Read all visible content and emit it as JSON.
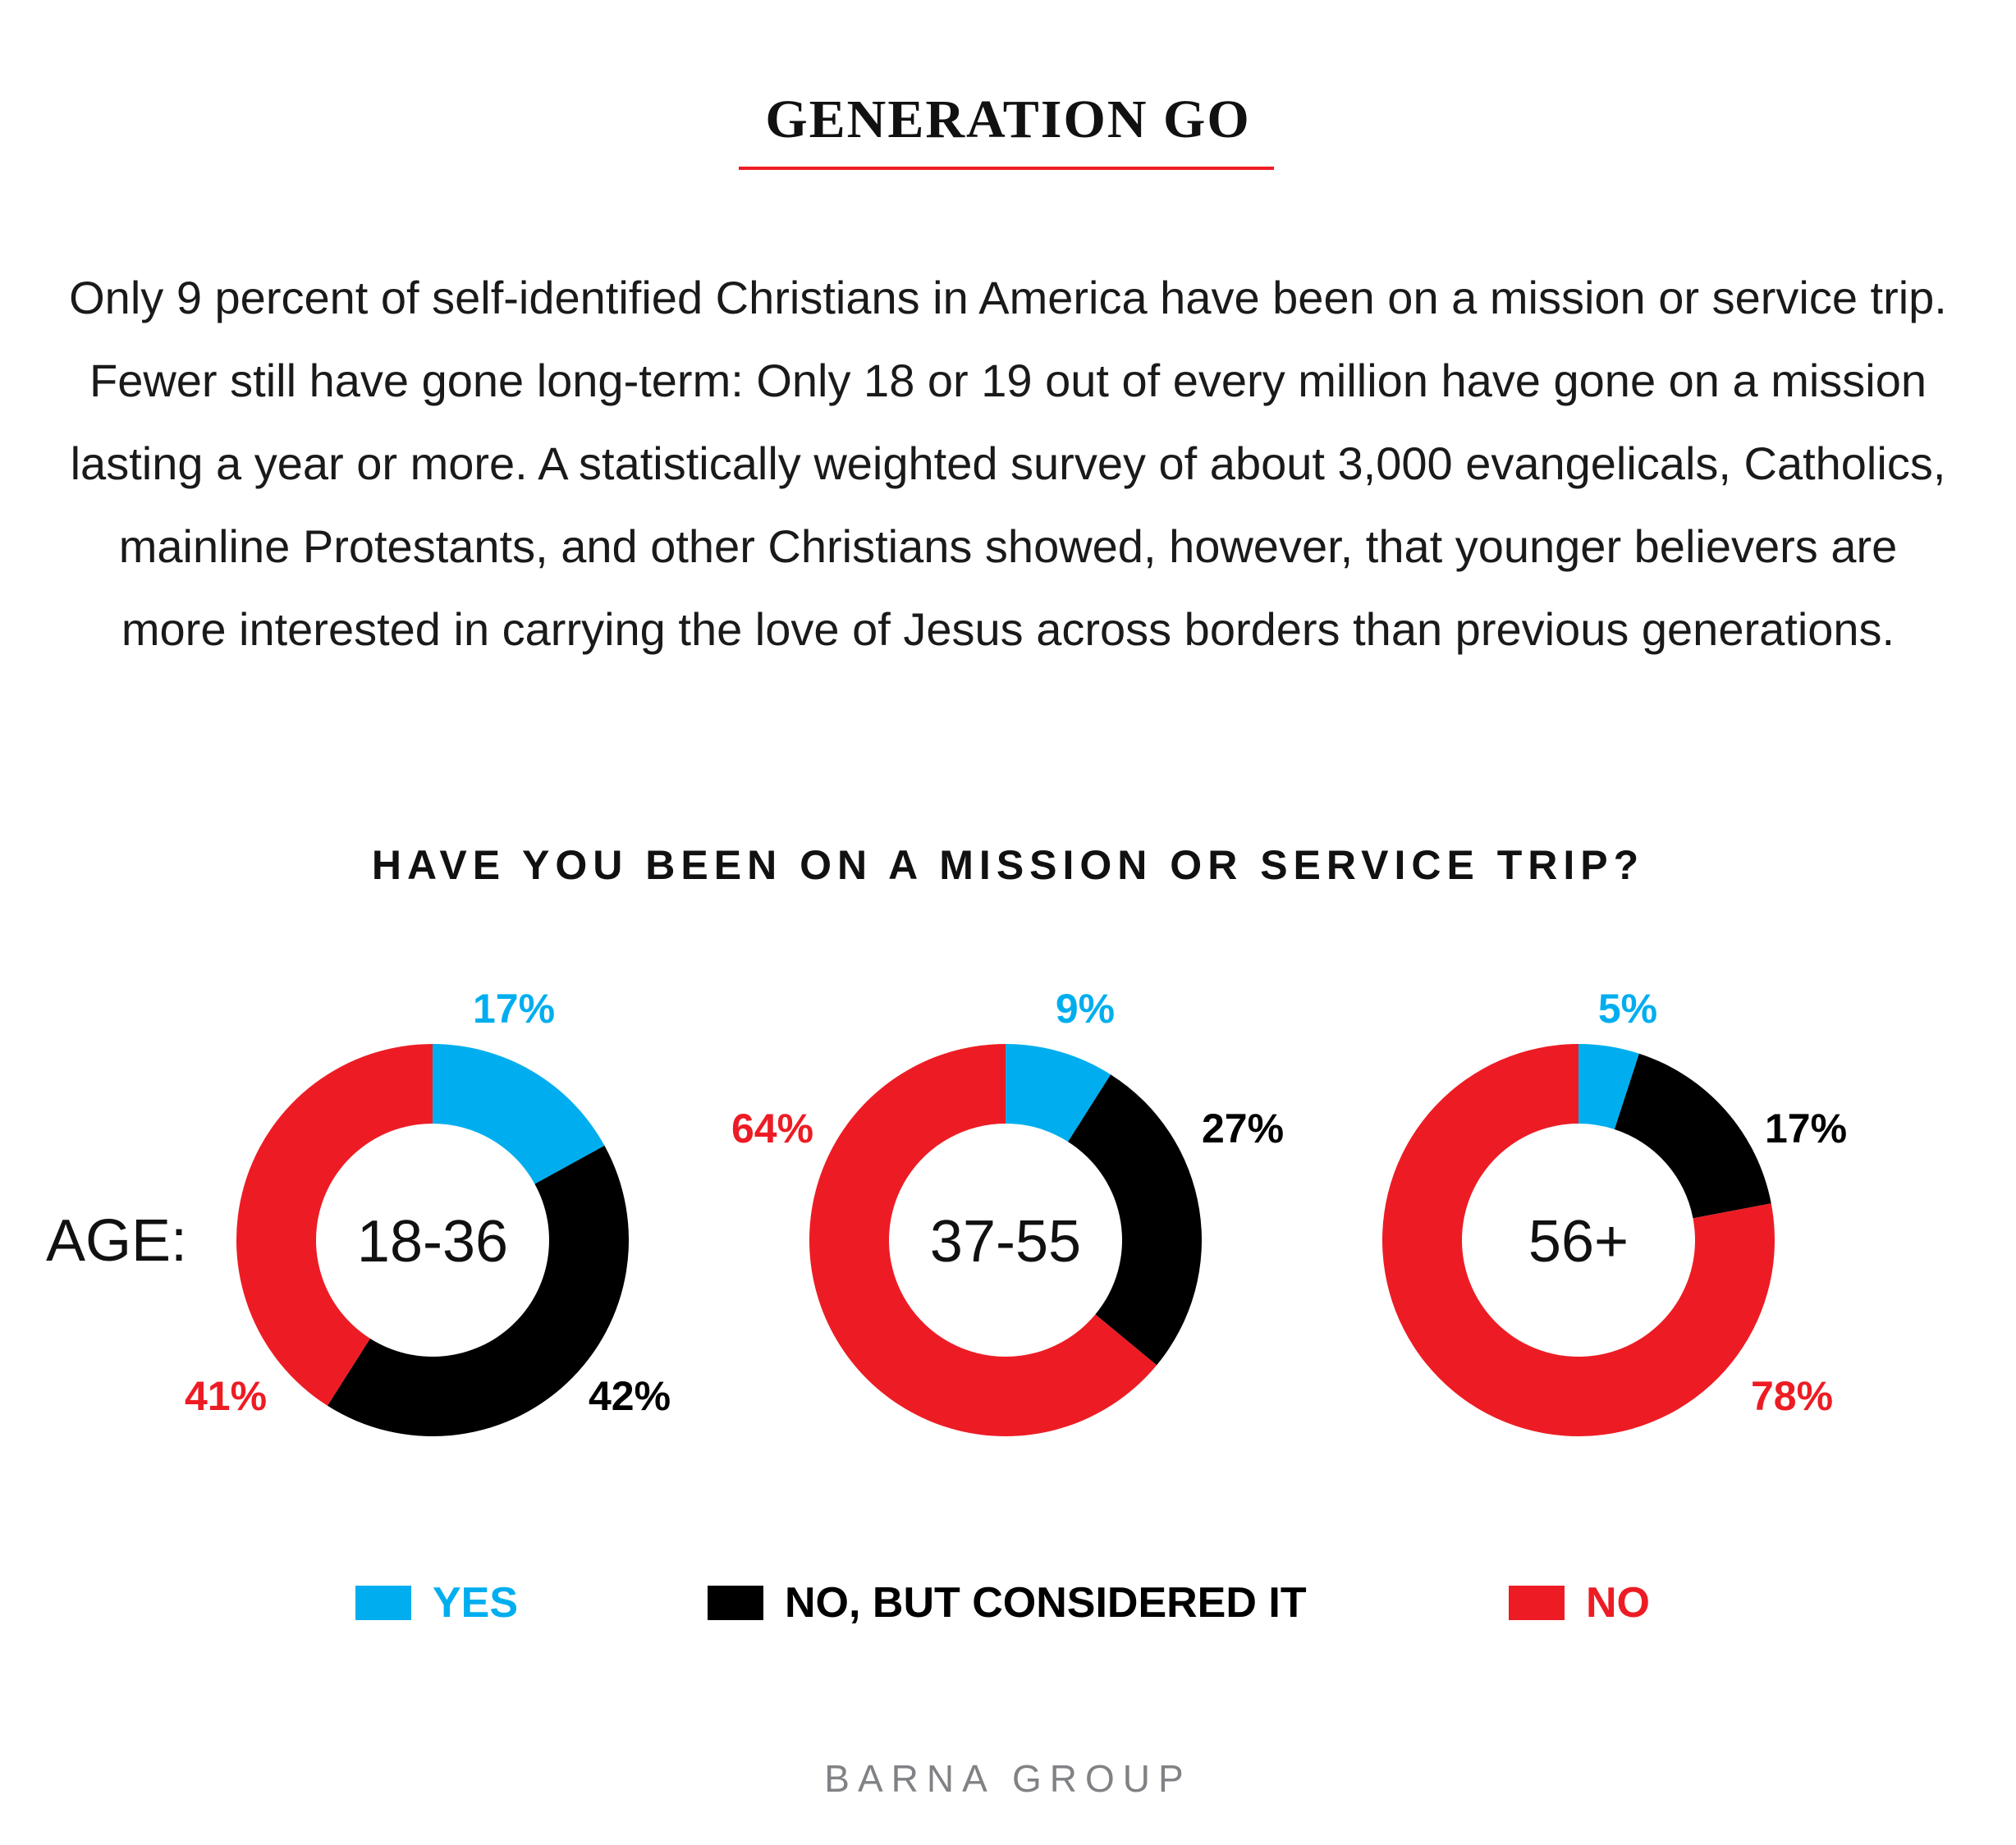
{
  "title": "GENERATION GO",
  "intro": "Only 9 percent of self-identified Christians in America have been on a mission or service trip. Fewer still have gone long-term: Only 18 or 19 out of every million have gone on a mission lasting a year or more. A statistically weighted survey of about 3,000 evangelicals, Catholics, mainline Protestants, and other Christians showed, however, that younger believers are more interested in carrying the love of Jesus across borders than previous generations.",
  "footer": "BARNA GROUP",
  "chart_data": {
    "type": "pie",
    "title": "HAVE YOU BEEN ON A MISSION OR SERVICE TRIP?",
    "row_label": "AGE:",
    "categories": [
      "YES",
      "NO, BUT CONSIDERED IT",
      "NO"
    ],
    "colors": [
      "#00AEEF",
      "#000000",
      "#ED1C24"
    ],
    "legend_placement": "bottom",
    "groups": [
      {
        "name": "18-36",
        "values": [
          17,
          42,
          41
        ],
        "labels": [
          "17%",
          "42%",
          "41%"
        ]
      },
      {
        "name": "37-55",
        "values": [
          9,
          27,
          64
        ],
        "labels": [
          "9%",
          "27%",
          "64%"
        ]
      },
      {
        "name": "56+",
        "values": [
          5,
          17,
          78
        ],
        "labels": [
          "5%",
          "17%",
          "78%"
        ]
      }
    ]
  }
}
